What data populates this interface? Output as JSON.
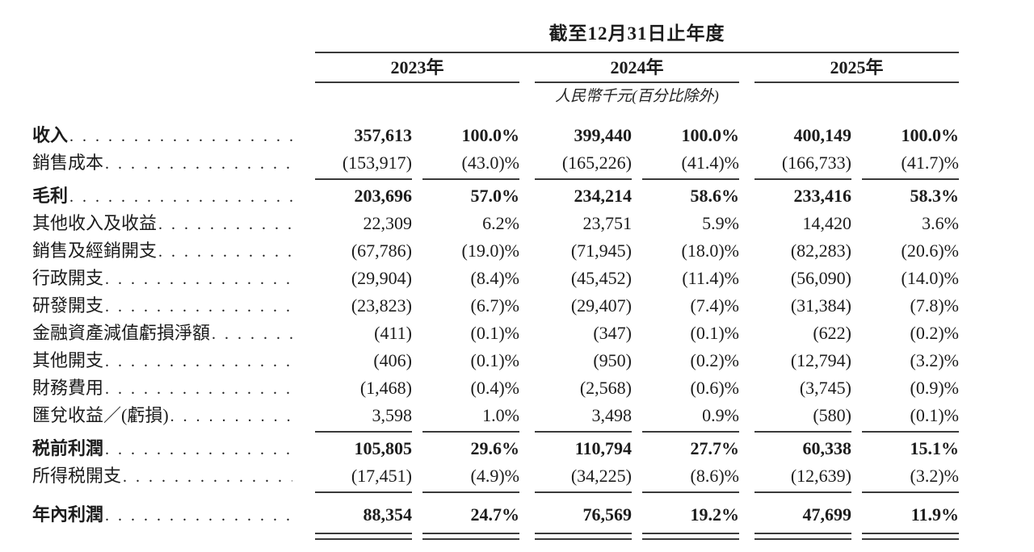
{
  "style": {
    "text_color": "#1c1c1c",
    "rule_color": "#3a3a3a",
    "background": "#ffffff"
  },
  "header": {
    "period_title": "截至12月31日止年度",
    "years": [
      "2023年",
      "2024年",
      "2025年"
    ],
    "unit_note": "人民幣千元(百分比除外)"
  },
  "columns": [
    "2023年 金額",
    "2023年 百分比",
    "2024年 金額",
    "2024年 百分比",
    "2025年 金額",
    "2025年 百分比"
  ],
  "rows": [
    {
      "label": "收入",
      "bold": true,
      "values": [
        "357,613",
        "100.0%",
        "399,440",
        "100.0%",
        "400,149",
        "100.0%"
      ]
    },
    {
      "label": "銷售成本",
      "bold": false,
      "values": [
        "(153,917)",
        "(43.0)%",
        "(165,226)",
        "(41.4)%",
        "(166,733)",
        "(41.7)%"
      ],
      "rule_after": true
    },
    {
      "label": "毛利",
      "bold": true,
      "values": [
        "203,696",
        "57.0%",
        "234,214",
        "58.6%",
        "233,416",
        "58.3%"
      ]
    },
    {
      "label": "其他收入及收益",
      "bold": false,
      "values": [
        "22,309",
        "6.2%",
        "23,751",
        "5.9%",
        "14,420",
        "3.6%"
      ]
    },
    {
      "label": "銷售及經銷開支",
      "bold": false,
      "values": [
        "(67,786)",
        "(19.0)%",
        "(71,945)",
        "(18.0)%",
        "(82,283)",
        "(20.6)%"
      ]
    },
    {
      "label": "行政開支",
      "bold": false,
      "values": [
        "(29,904)",
        "(8.4)%",
        "(45,452)",
        "(11.4)%",
        "(56,090)",
        "(14.0)%"
      ]
    },
    {
      "label": "研發開支",
      "bold": false,
      "values": [
        "(23,823)",
        "(6.7)%",
        "(29,407)",
        "(7.4)%",
        "(31,384)",
        "(7.8)%"
      ]
    },
    {
      "label": "金融資產減值虧損淨額",
      "bold": false,
      "values": [
        "(411)",
        "(0.1)%",
        "(347)",
        "(0.1)%",
        "(622)",
        "(0.2)%"
      ]
    },
    {
      "label": "其他開支",
      "bold": false,
      "values": [
        "(406)",
        "(0.1)%",
        "(950)",
        "(0.2)%",
        "(12,794)",
        "(3.2)%"
      ]
    },
    {
      "label": "財務費用",
      "bold": false,
      "values": [
        "(1,468)",
        "(0.4)%",
        "(2,568)",
        "(0.6)%",
        "(3,745)",
        "(0.9)%"
      ]
    },
    {
      "label": "匯兌收益／(虧損)",
      "bold": false,
      "values": [
        "3,598",
        "1.0%",
        "3,498",
        "0.9%",
        "(580)",
        "(0.1)%"
      ],
      "rule_after": true
    },
    {
      "label": "税前利潤",
      "bold": true,
      "values": [
        "105,805",
        "29.6%",
        "110,794",
        "27.7%",
        "60,338",
        "15.1%"
      ]
    },
    {
      "label": "所得税開支",
      "bold": false,
      "values": [
        "(17,451)",
        "(4.9)%",
        "(34,225)",
        "(8.6)%",
        "(12,639)",
        "(3.2)%"
      ],
      "rule_after": true
    },
    {
      "label": "年內利潤",
      "bold": true,
      "values": [
        "88,354",
        "24.7%",
        "76,569",
        "19.2%",
        "47,699",
        "11.9%"
      ],
      "double_rule_after": true,
      "space_before": true
    }
  ]
}
